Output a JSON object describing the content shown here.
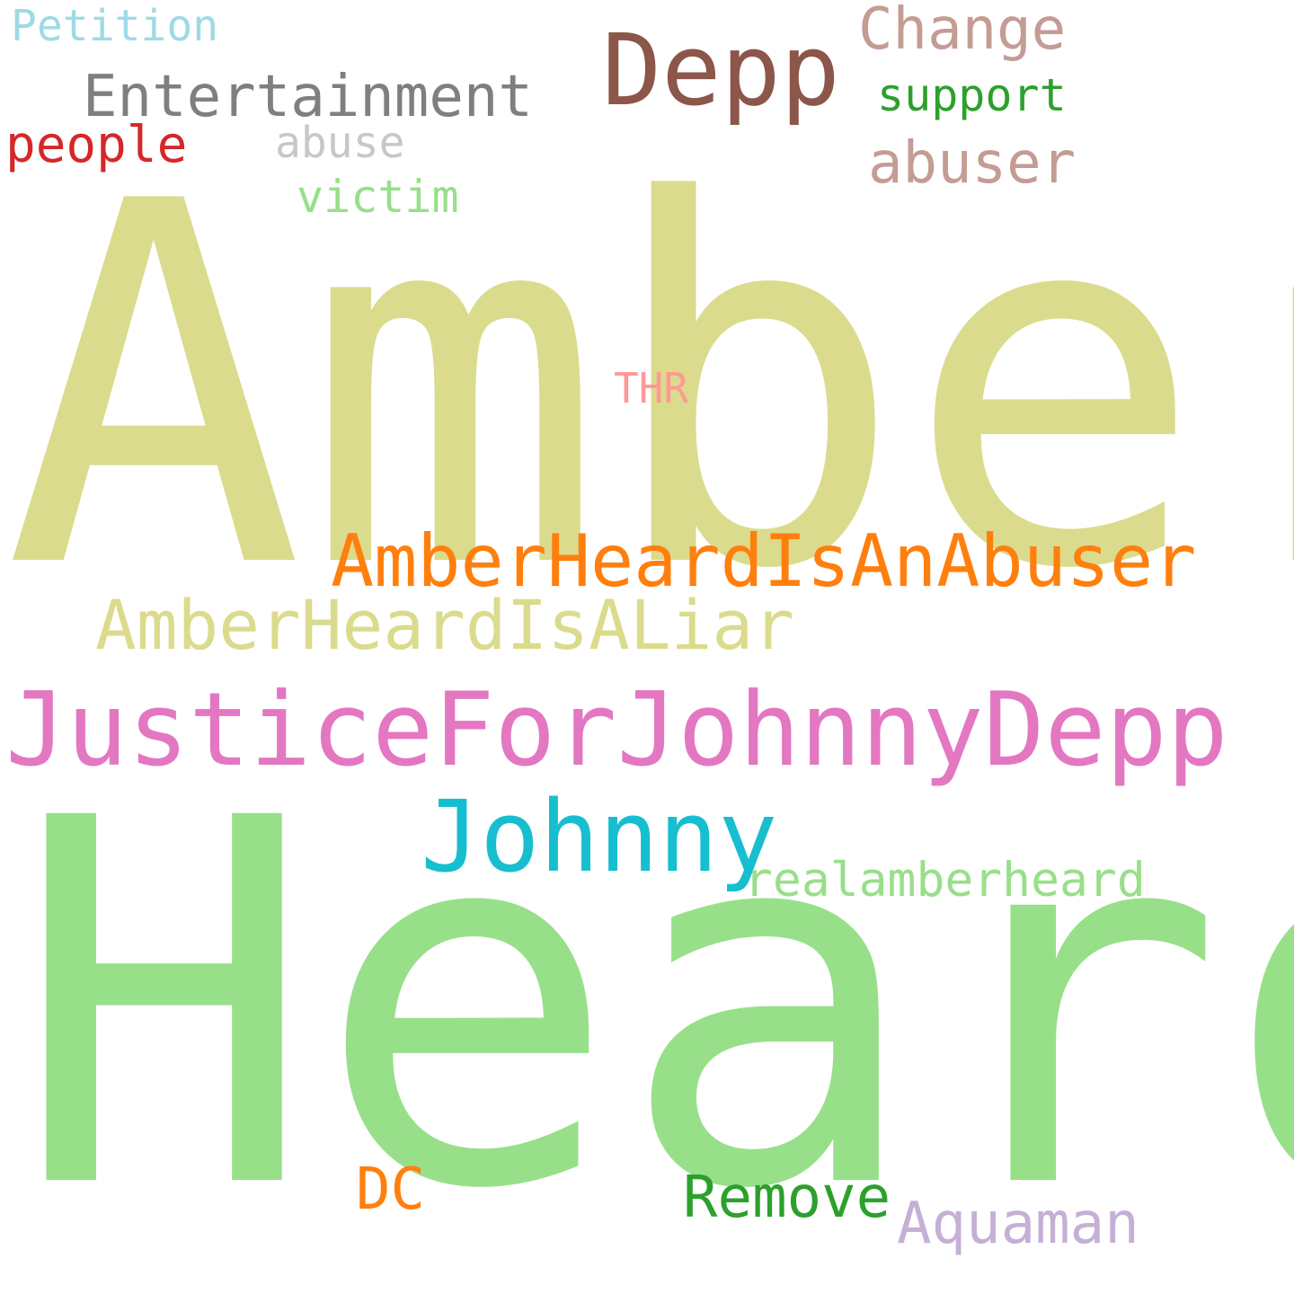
{
  "words": {
    "amber": {
      "text": "Amber",
      "color": "#dbdb8d"
    },
    "heard": {
      "text": "Heard",
      "color": "#98df8a"
    },
    "justice_for_johnny": {
      "text": "JusticeForJohnnyDepp",
      "color": "#e377c2"
    },
    "amber_is_abuser": {
      "text": "AmberHeardIsAnAbuser",
      "color": "#ff7f0e"
    },
    "amber_is_liar": {
      "text": "AmberHeardIsALiar",
      "color": "#dbdb8d"
    },
    "johnny": {
      "text": "Johnny",
      "color": "#17becf"
    },
    "depp": {
      "text": "Depp",
      "color": "#8c564b"
    },
    "entertainment": {
      "text": "Entertainment",
      "color": "#7f7f7f"
    },
    "change": {
      "text": "Change",
      "color": "#c49c94"
    },
    "abuser": {
      "text": "abuser",
      "color": "#c49c94"
    },
    "petition": {
      "text": "Petition",
      "color": "#9edae5"
    },
    "support": {
      "text": "support",
      "color": "#2ca02c"
    },
    "people": {
      "text": "people",
      "color": "#d62728"
    },
    "abuse": {
      "text": "abuse",
      "color": "#c7c7c7"
    },
    "victim": {
      "text": "victim",
      "color": "#98df8a"
    },
    "thr": {
      "text": "THR",
      "color": "#ff9896"
    },
    "realamberheard": {
      "text": "realamberheard",
      "color": "#98df8a"
    },
    "dc": {
      "text": "DC",
      "color": "#ff7f0e"
    },
    "remove": {
      "text": "Remove",
      "color": "#2ca02c"
    },
    "aquaman": {
      "text": "Aquaman",
      "color": "#c5b0d5"
    }
  }
}
